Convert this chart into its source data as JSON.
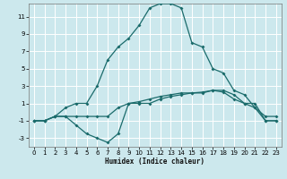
{
  "xlabel": "Humidex (Indice chaleur)",
  "bg_color": "#cce8ed",
  "grid_color": "#ffffff",
  "line_color": "#1a6b6b",
  "xlim": [
    -0.5,
    23.5
  ],
  "ylim": [
    -4,
    12.5
  ],
  "xticks": [
    0,
    1,
    2,
    3,
    4,
    5,
    6,
    7,
    8,
    9,
    10,
    11,
    12,
    13,
    14,
    15,
    16,
    17,
    18,
    19,
    20,
    21,
    22,
    23
  ],
  "yticks": [
    -3,
    -1,
    1,
    3,
    5,
    7,
    9,
    11
  ],
  "line_main_x": [
    0,
    1,
    2,
    3,
    4,
    5,
    6,
    7,
    8,
    9,
    10,
    11,
    12,
    13,
    14,
    15,
    16,
    17,
    18,
    19,
    20,
    21,
    22,
    23
  ],
  "line_main_y": [
    -1,
    -1,
    -0.5,
    0.5,
    1,
    1,
    3,
    6,
    7.5,
    8.5,
    10,
    12,
    12.5,
    12.5,
    12,
    8,
    7.5,
    5,
    4.5,
    2.5,
    2,
    0.5,
    -0.5,
    -0.5
  ],
  "line_valley_x": [
    0,
    1,
    2,
    3,
    4,
    5,
    6,
    7,
    8,
    9,
    10,
    11,
    12,
    13,
    14,
    15,
    16,
    17,
    18,
    19,
    20,
    21,
    22,
    23
  ],
  "line_valley_y": [
    -1,
    -1,
    -0.5,
    -0.5,
    -1.5,
    -2.5,
    -3,
    -3.5,
    -2.5,
    1,
    1,
    1,
    1.5,
    1.8,
    2,
    2.2,
    2.3,
    2.5,
    2.3,
    1.5,
    1,
    0.5,
    -1,
    -1
  ],
  "line_flat_x": [
    0,
    1,
    2,
    3,
    4,
    5,
    6,
    7,
    8,
    9,
    10,
    11,
    12,
    13,
    14,
    15,
    16,
    17,
    18,
    19,
    20,
    21,
    22,
    23
  ],
  "line_flat_y": [
    -1,
    -1,
    -0.5,
    -0.5,
    -0.5,
    -0.5,
    -0.5,
    -0.5,
    0.5,
    1,
    1.2,
    1.5,
    1.8,
    2,
    2.2,
    2.2,
    2.2,
    2.5,
    2.5,
    2,
    1,
    1,
    -1,
    -1
  ]
}
